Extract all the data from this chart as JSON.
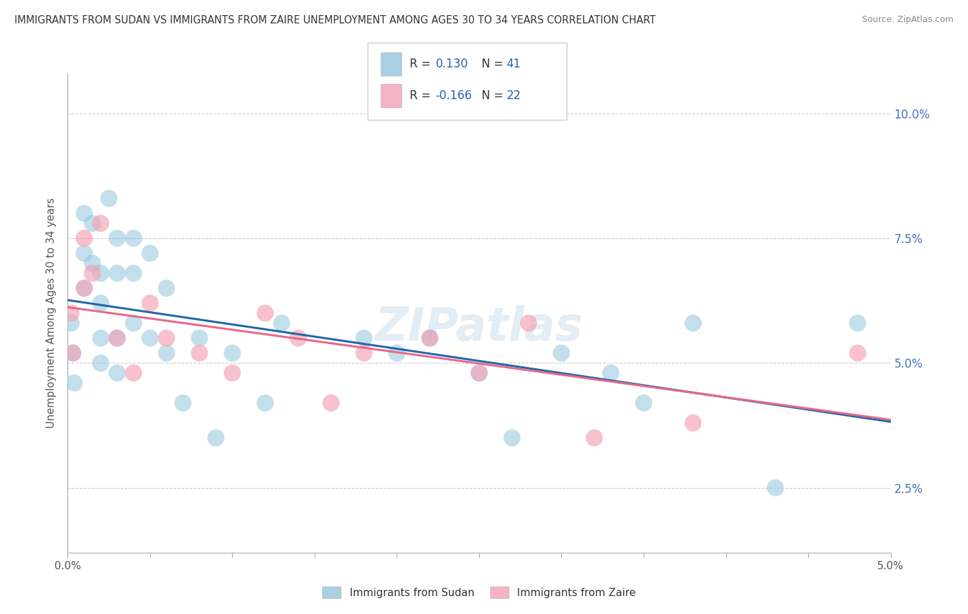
{
  "title": "IMMIGRANTS FROM SUDAN VS IMMIGRANTS FROM ZAIRE UNEMPLOYMENT AMONG AGES 30 TO 34 YEARS CORRELATION CHART",
  "source": "Source: ZipAtlas.com",
  "ylabel": "Unemployment Among Ages 30 to 34 years",
  "y_tick_vals": [
    0.025,
    0.05,
    0.075,
    0.1
  ],
  "y_tick_labels": [
    "2.5%",
    "5.0%",
    "7.5%",
    "10.0%"
  ],
  "xlim": [
    0.0,
    0.05
  ],
  "ylim": [
    0.012,
    0.108
  ],
  "sudan_color": "#92c5de",
  "zaire_color": "#f4a0b5",
  "sudan_line_color": "#2166ac",
  "zaire_line_color": "#e8688a",
  "legend_val_color": "#2166ac",
  "sudan_R": 0.13,
  "sudan_N": 41,
  "zaire_R": -0.166,
  "zaire_N": 22,
  "watermark": "ZIPatlas",
  "sudan_x": [
    0.0002,
    0.0003,
    0.0004,
    0.001,
    0.001,
    0.001,
    0.0015,
    0.0015,
    0.002,
    0.002,
    0.002,
    0.002,
    0.0025,
    0.003,
    0.003,
    0.003,
    0.003,
    0.004,
    0.004,
    0.004,
    0.005,
    0.005,
    0.006,
    0.006,
    0.007,
    0.008,
    0.009,
    0.01,
    0.012,
    0.013,
    0.018,
    0.02,
    0.022,
    0.025,
    0.027,
    0.03,
    0.033,
    0.035,
    0.038,
    0.043,
    0.048
  ],
  "sudan_y": [
    0.058,
    0.052,
    0.046,
    0.08,
    0.072,
    0.065,
    0.078,
    0.07,
    0.068,
    0.062,
    0.055,
    0.05,
    0.083,
    0.075,
    0.068,
    0.055,
    0.048,
    0.075,
    0.068,
    0.058,
    0.072,
    0.055,
    0.065,
    0.052,
    0.042,
    0.055,
    0.035,
    0.052,
    0.042,
    0.058,
    0.055,
    0.052,
    0.055,
    0.048,
    0.035,
    0.052,
    0.048,
    0.042,
    0.058,
    0.025,
    0.058
  ],
  "zaire_x": [
    0.0002,
    0.0003,
    0.001,
    0.001,
    0.0015,
    0.002,
    0.003,
    0.004,
    0.005,
    0.006,
    0.008,
    0.01,
    0.012,
    0.014,
    0.016,
    0.018,
    0.022,
    0.025,
    0.028,
    0.032,
    0.038,
    0.048
  ],
  "zaire_y": [
    0.06,
    0.052,
    0.075,
    0.065,
    0.068,
    0.078,
    0.055,
    0.048,
    0.062,
    0.055,
    0.052,
    0.048,
    0.06,
    0.055,
    0.042,
    0.052,
    0.055,
    0.048,
    0.058,
    0.035,
    0.038,
    0.052
  ]
}
